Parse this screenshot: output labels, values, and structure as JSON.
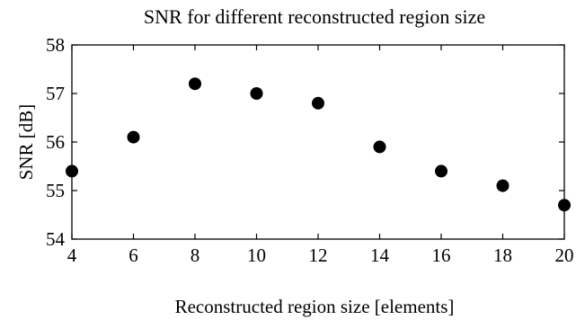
{
  "chart_data": {
    "type": "scatter",
    "title": "SNR for different reconstructed region size",
    "xlabel": "Reconstructed region size [elements]",
    "ylabel": "SNR [dB]",
    "xlim": [
      4,
      20
    ],
    "ylim": [
      54,
      58
    ],
    "xticks": [
      "4",
      "6",
      "8",
      "10",
      "12",
      "14",
      "16",
      "18",
      "20"
    ],
    "yticks": [
      "54",
      "55",
      "56",
      "57",
      "58"
    ],
    "grid": false,
    "marker_color": "#000000",
    "points": [
      {
        "x": 4,
        "y": 55.4
      },
      {
        "x": 6,
        "y": 56.1
      },
      {
        "x": 8,
        "y": 57.2
      },
      {
        "x": 10,
        "y": 57.0
      },
      {
        "x": 12,
        "y": 56.8
      },
      {
        "x": 14,
        "y": 55.9
      },
      {
        "x": 16,
        "y": 55.4
      },
      {
        "x": 18,
        "y": 55.1
      },
      {
        "x": 20,
        "y": 54.7
      }
    ]
  }
}
